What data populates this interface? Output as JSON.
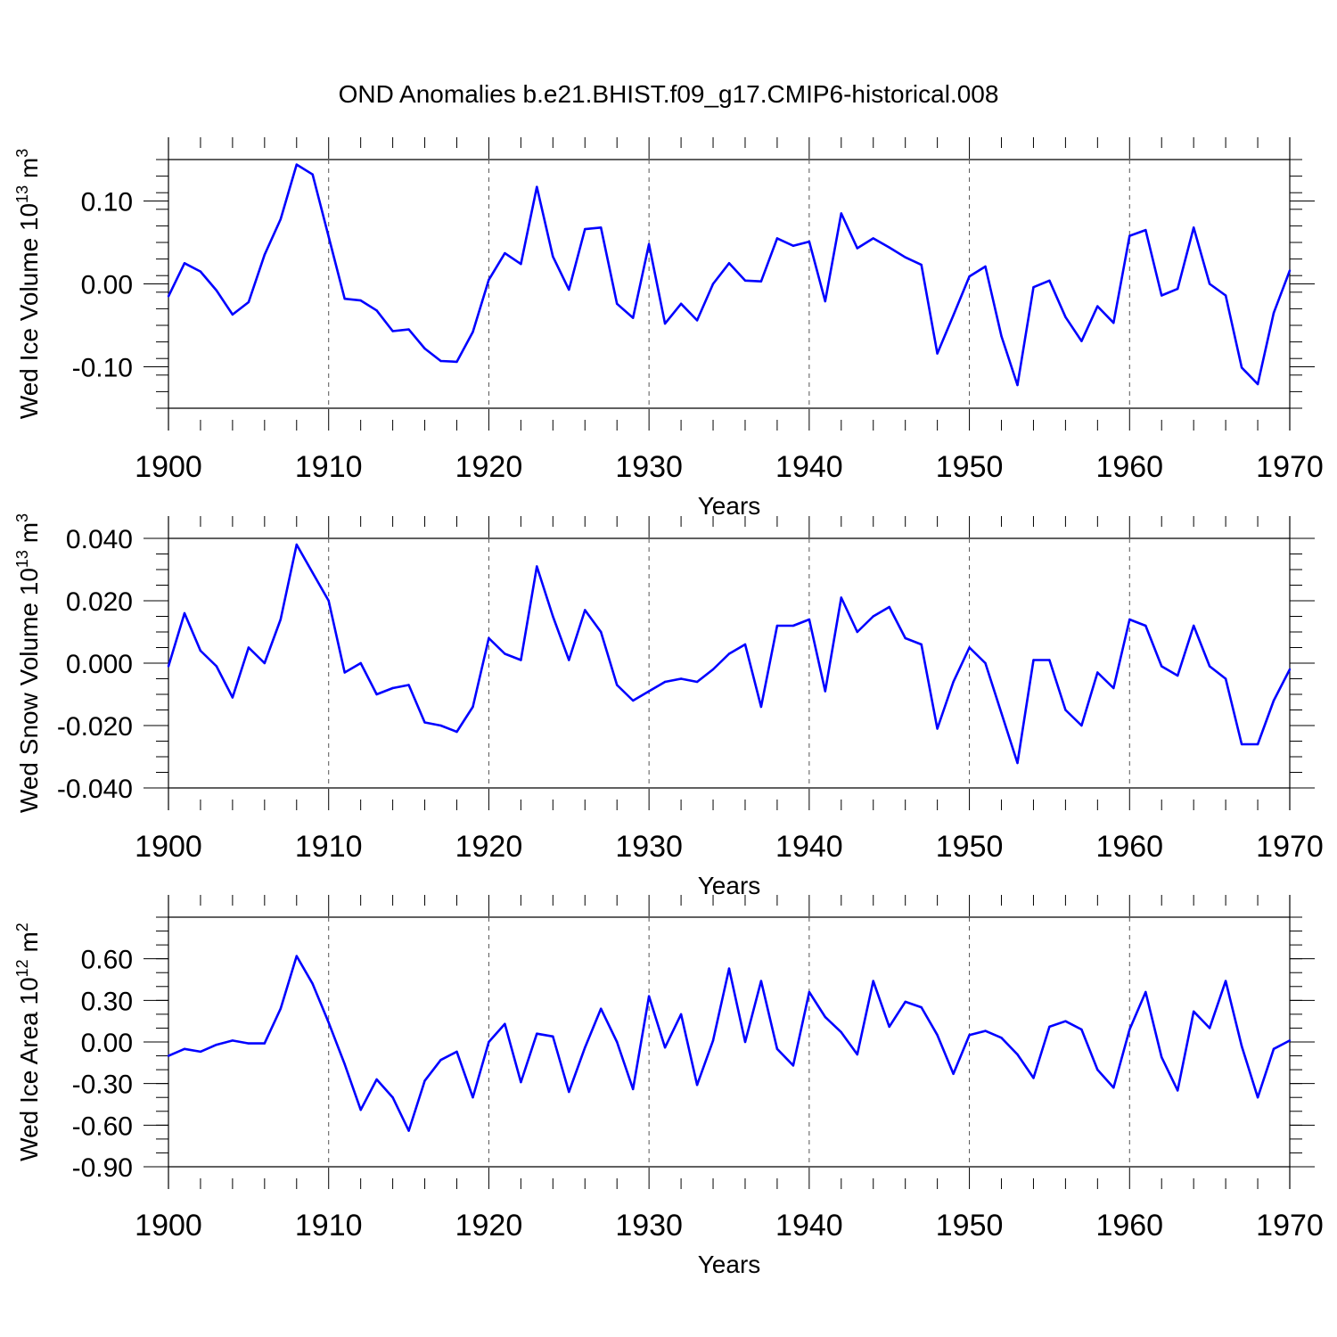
{
  "title": "OND Anomalies b.e21.BHIST.f09_g17.CMIP6-historical.008",
  "line_color": "#0000ff",
  "chart_data": [
    {
      "type": "line",
      "ylabel": {
        "main": "Wed Ice Volume 10",
        "exp": "13",
        "unit": " m",
        "unit_exp": "3"
      },
      "xlabel": "Years",
      "xlim": [
        1900,
        1970
      ],
      "ylim": [
        -0.15,
        0.15
      ],
      "xticks": [
        1900,
        1910,
        1920,
        1930,
        1940,
        1950,
        1960,
        1970
      ],
      "xtick_labels": [
        "1900",
        "1910",
        "1920",
        "1930",
        "1940",
        "1950",
        "1960",
        "1970"
      ],
      "yticks": [
        -0.1,
        0.0,
        0.1
      ],
      "ytick_labels": [
        "-0.10",
        "0.00",
        "0.10"
      ],
      "yminor_step": 0.02,
      "x": [
        1900,
        1901,
        1902,
        1903,
        1904,
        1905,
        1906,
        1907,
        1908,
        1909,
        1910,
        1911,
        1912,
        1913,
        1914,
        1915,
        1916,
        1917,
        1918,
        1919,
        1920,
        1921,
        1922,
        1923,
        1924,
        1925,
        1926,
        1927,
        1928,
        1929,
        1930,
        1931,
        1932,
        1933,
        1934,
        1935,
        1936,
        1937,
        1938,
        1939,
        1940,
        1941,
        1942,
        1943,
        1944,
        1945,
        1946,
        1947,
        1948,
        1949,
        1950,
        1951,
        1952,
        1953,
        1954,
        1955,
        1956,
        1957,
        1958,
        1959,
        1960,
        1961,
        1962,
        1963,
        1964,
        1965,
        1966,
        1967,
        1968,
        1969,
        1970
      ],
      "values": [
        -0.015,
        0.025,
        0.015,
        -0.008,
        -0.037,
        -0.022,
        0.035,
        0.078,
        0.144,
        0.132,
        0.057,
        -0.018,
        -0.02,
        -0.032,
        -0.057,
        -0.055,
        -0.078,
        -0.093,
        -0.094,
        -0.058,
        0.005,
        0.037,
        0.024,
        0.117,
        0.033,
        -0.007,
        0.066,
        0.068,
        -0.024,
        -0.041,
        0.048,
        -0.048,
        -0.024,
        -0.044,
        0.0,
        0.025,
        0.004,
        0.003,
        0.055,
        0.046,
        0.051,
        -0.021,
        0.085,
        0.043,
        0.055,
        0.044,
        0.032,
        0.023,
        -0.084,
        -0.038,
        0.009,
        0.021,
        -0.063,
        -0.122,
        -0.004,
        0.004,
        -0.04,
        -0.069,
        -0.027,
        -0.047,
        0.058,
        0.065,
        -0.014,
        -0.006,
        0.068,
        0.0,
        -0.014,
        -0.101,
        -0.121,
        -0.035,
        0.016
      ]
    },
    {
      "type": "line",
      "ylabel": {
        "main": "Wed Snow Volume 10",
        "exp": "13",
        "unit": " m",
        "unit_exp": "3"
      },
      "xlabel": "Years",
      "xlim": [
        1900,
        1970
      ],
      "ylim": [
        -0.04,
        0.04
      ],
      "xticks": [
        1900,
        1910,
        1920,
        1930,
        1940,
        1950,
        1960,
        1970
      ],
      "xtick_labels": [
        "1900",
        "1910",
        "1920",
        "1930",
        "1940",
        "1950",
        "1960",
        "1970"
      ],
      "yticks": [
        -0.04,
        -0.02,
        0.0,
        0.02,
        0.04
      ],
      "ytick_labels": [
        "-0.040",
        "-0.020",
        "0.000",
        "0.020",
        "0.040"
      ],
      "yminor_step": 0.005,
      "x": [
        1900,
        1901,
        1902,
        1903,
        1904,
        1905,
        1906,
        1907,
        1908,
        1909,
        1910,
        1911,
        1912,
        1913,
        1914,
        1915,
        1916,
        1917,
        1918,
        1919,
        1920,
        1921,
        1922,
        1923,
        1924,
        1925,
        1926,
        1927,
        1928,
        1929,
        1930,
        1931,
        1932,
        1933,
        1934,
        1935,
        1936,
        1937,
        1938,
        1939,
        1940,
        1941,
        1942,
        1943,
        1944,
        1945,
        1946,
        1947,
        1948,
        1949,
        1950,
        1951,
        1952,
        1953,
        1954,
        1955,
        1956,
        1957,
        1958,
        1959,
        1960,
        1961,
        1962,
        1963,
        1964,
        1965,
        1966,
        1967,
        1968,
        1969,
        1970
      ],
      "values": [
        -0.001,
        0.016,
        0.004,
        -0.001,
        -0.011,
        0.005,
        0.0,
        0.014,
        0.038,
        0.029,
        0.02,
        -0.003,
        0.0,
        -0.01,
        -0.008,
        -0.007,
        -0.019,
        -0.02,
        -0.022,
        -0.014,
        0.008,
        0.003,
        0.001,
        0.031,
        0.015,
        0.001,
        0.017,
        0.01,
        -0.007,
        -0.012,
        -0.009,
        -0.006,
        -0.005,
        -0.006,
        -0.002,
        0.003,
        0.006,
        -0.014,
        0.012,
        0.012,
        0.014,
        -0.009,
        0.021,
        0.01,
        0.015,
        0.018,
        0.008,
        0.006,
        -0.021,
        -0.006,
        0.005,
        0.0,
        -0.016,
        -0.032,
        0.001,
        0.001,
        -0.015,
        -0.02,
        -0.003,
        -0.008,
        0.014,
        0.012,
        -0.001,
        -0.004,
        0.012,
        -0.001,
        -0.005,
        -0.026,
        -0.026,
        -0.012,
        -0.002
      ]
    },
    {
      "type": "line",
      "ylabel": {
        "main": "Wed Ice Area 10",
        "exp": "12",
        "unit": " m",
        "unit_exp": "2"
      },
      "xlabel": "Years",
      "xlim": [
        1900,
        1970
      ],
      "ylim": [
        -0.9,
        0.9
      ],
      "xticks": [
        1900,
        1910,
        1920,
        1930,
        1940,
        1950,
        1960,
        1970
      ],
      "xtick_labels": [
        "1900",
        "1910",
        "1920",
        "1930",
        "1940",
        "1950",
        "1960",
        "1970"
      ],
      "yticks": [
        -0.9,
        -0.6,
        -0.3,
        0.0,
        0.3,
        0.6
      ],
      "ytick_labels": [
        "-0.90",
        "-0.60",
        "-0.30",
        "0.00",
        "0.30",
        "0.60"
      ],
      "yminor_step": 0.1,
      "x": [
        1900,
        1901,
        1902,
        1903,
        1904,
        1905,
        1906,
        1907,
        1908,
        1909,
        1910,
        1911,
        1912,
        1913,
        1914,
        1915,
        1916,
        1917,
        1918,
        1919,
        1920,
        1921,
        1922,
        1923,
        1924,
        1925,
        1926,
        1927,
        1928,
        1929,
        1930,
        1931,
        1932,
        1933,
        1934,
        1935,
        1936,
        1937,
        1938,
        1939,
        1940,
        1941,
        1942,
        1943,
        1944,
        1945,
        1946,
        1947,
        1948,
        1949,
        1950,
        1951,
        1952,
        1953,
        1954,
        1955,
        1956,
        1957,
        1958,
        1959,
        1960,
        1961,
        1962,
        1963,
        1964,
        1965,
        1966,
        1967,
        1968,
        1969,
        1970
      ],
      "values": [
        -0.1,
        -0.05,
        -0.07,
        -0.02,
        0.01,
        -0.01,
        -0.01,
        0.24,
        0.62,
        0.42,
        0.14,
        -0.16,
        -0.49,
        -0.27,
        -0.4,
        -0.64,
        -0.28,
        -0.13,
        -0.07,
        -0.4,
        0.0,
        0.13,
        -0.29,
        0.06,
        0.04,
        -0.36,
        -0.04,
        0.24,
        0.0,
        -0.34,
        0.33,
        -0.04,
        0.2,
        -0.31,
        0.01,
        0.53,
        0.0,
        0.44,
        -0.05,
        -0.17,
        0.36,
        0.18,
        0.07,
        -0.09,
        0.44,
        0.11,
        0.29,
        0.25,
        0.05,
        -0.23,
        0.05,
        0.08,
        0.03,
        -0.09,
        -0.26,
        0.11,
        0.15,
        0.09,
        -0.2,
        -0.33,
        0.09,
        0.36,
        -0.11,
        -0.35,
        0.22,
        0.1,
        0.44,
        -0.03,
        -0.4,
        -0.05,
        0.01
      ]
    }
  ]
}
